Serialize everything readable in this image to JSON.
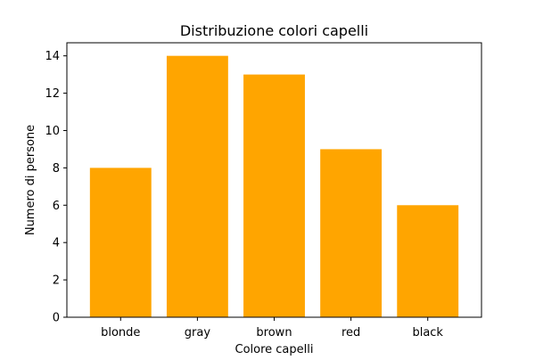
{
  "chart_data": {
    "type": "bar",
    "title": "Distribuzione colori capelli",
    "xlabel": "Colore capelli",
    "ylabel": "Numero di persone",
    "categories": [
      "blonde",
      "gray",
      "brown",
      "red",
      "black"
    ],
    "values": [
      8,
      14,
      13,
      9,
      6
    ],
    "ylim": [
      0,
      14.7
    ],
    "yticks": [
      0,
      2,
      4,
      6,
      8,
      10,
      12,
      14
    ],
    "bar_color": "#ffa500",
    "grid": false,
    "legend": "none"
  }
}
